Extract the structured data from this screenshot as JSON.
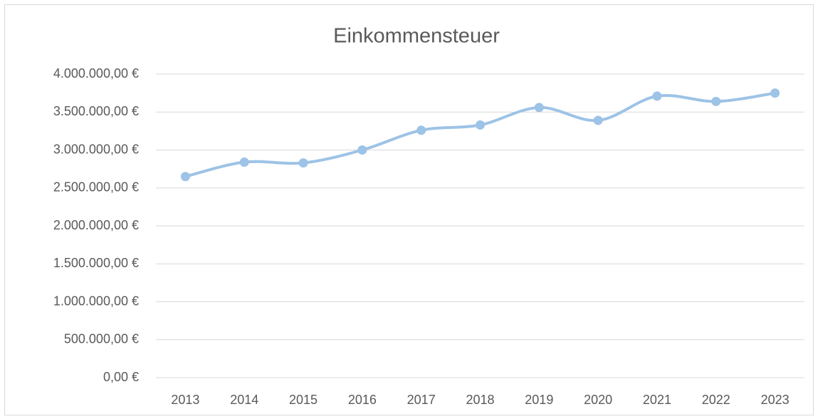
{
  "chart_data": {
    "type": "line",
    "title": "Einkommensteuer",
    "categories": [
      "2013",
      "2014",
      "2015",
      "2016",
      "2017",
      "2018",
      "2019",
      "2020",
      "2021",
      "2022",
      "2023"
    ],
    "series": [
      {
        "name": "Einkommensteuer",
        "color": "#9dc3e6",
        "values": [
          2650000,
          2840000,
          2830000,
          3000000,
          3260000,
          3330000,
          3560000,
          3390000,
          3710000,
          3640000,
          3750000
        ]
      }
    ],
    "ylim": [
      0,
      4000000
    ],
    "yticks": [
      {
        "value": 0,
        "label": "0,00 €"
      },
      {
        "value": 500000,
        "label": "500.000,00 €"
      },
      {
        "value": 1000000,
        "label": "1.000.000,00 €"
      },
      {
        "value": 1500000,
        "label": "1.500.000,00 €"
      },
      {
        "value": 2000000,
        "label": "2.000.000,00 €"
      },
      {
        "value": 2500000,
        "label": "2.500.000,00 €"
      },
      {
        "value": 3000000,
        "label": "3.000.000,00 €"
      },
      {
        "value": 3500000,
        "label": "3.500.000,00 €"
      },
      {
        "value": 4000000,
        "label": "4.000.000,00 €"
      }
    ],
    "grid": true,
    "smooth": true
  }
}
